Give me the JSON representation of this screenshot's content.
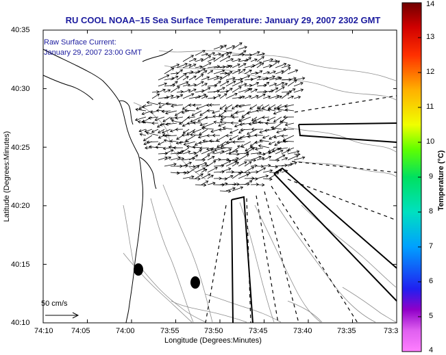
{
  "title": "RU COOL  NOAA–15  Sea Surface Temperature:  January 29, 2007 2302 GMT",
  "caption": {
    "line1": "Raw Surface Current:",
    "line2": "January 29, 2007 23:00 GMT"
  },
  "axes": {
    "xlabel": "Longitude (Degrees:Minutes)",
    "ylabel": "Latitude (Degrees:Minutes)",
    "xticks": [
      "74:10",
      "74:05",
      "74:00",
      "73:55",
      "73:50",
      "73:45",
      "73:40",
      "73:35",
      "73:3"
    ],
    "yticks": [
      "40:35",
      "40:30",
      "40:25",
      "40:20",
      "40:15",
      "40:10"
    ]
  },
  "scale_arrow": {
    "label": "50 cm/s"
  },
  "colorbar": {
    "label": "Temperature (°C)",
    "ticks": [
      "14",
      "13",
      "12",
      "11",
      "10",
      "9",
      "8",
      "7",
      "6",
      "5",
      "4"
    ]
  },
  "colors": {
    "title_text": "#1b1b9e",
    "coastline": "#000000",
    "bathymetry": "#8c8c8c"
  }
}
